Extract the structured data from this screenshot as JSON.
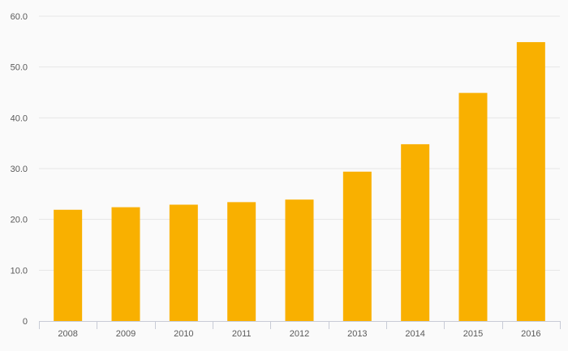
{
  "chart_data": {
    "type": "bar",
    "categories": [
      "2008",
      "2009",
      "2010",
      "2011",
      "2012",
      "2013",
      "2014",
      "2015",
      "2016"
    ],
    "values": [
      21.9,
      22.4,
      22.9,
      23.4,
      23.9,
      29.4,
      34.8,
      44.9,
      54.9
    ],
    "ylim": [
      0,
      60
    ],
    "yticks": [
      0,
      10,
      20,
      30,
      40,
      50,
      60
    ],
    "ytick_labels": [
      "0",
      "10.0",
      "20.0",
      "30.0",
      "40.0",
      "50.0",
      "60.0"
    ],
    "grid": true,
    "bar_color": "#f9b000",
    "grid_color": "#e6e6e6",
    "axis_color": "#c8cbd6"
  }
}
